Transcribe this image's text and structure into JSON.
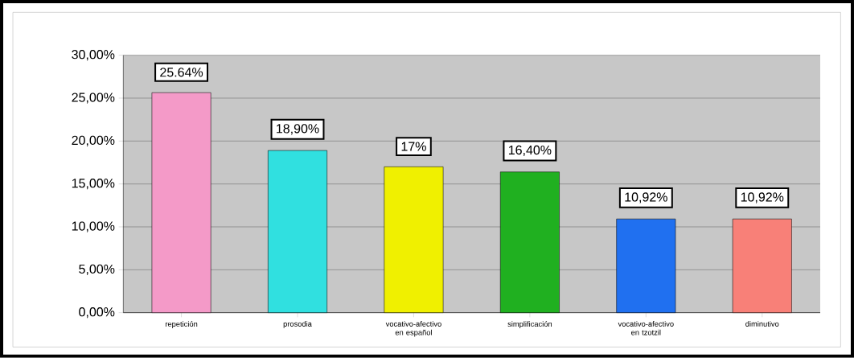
{
  "chart_data": {
    "type": "bar",
    "categories": [
      "repetición",
      "prosodia",
      "vocativo-afectivo en español",
      "simplificación",
      "vocativo-afectivo en tzotzil",
      "diminutivo"
    ],
    "values": [
      25.64,
      18.9,
      17,
      16.4,
      10.92,
      10.92
    ],
    "colors": [
      "#f49ac8",
      "#30e0e0",
      "#f0f000",
      "#20b020",
      "#2070f0",
      "#f88078"
    ],
    "value_labels": [
      "25.64%",
      "18,90%",
      "17%",
      "16,40%",
      "10,92%",
      "10,92%"
    ],
    "ylim": [
      0,
      30
    ],
    "yticks": [
      {
        "value": 0,
        "label": "0,00%"
      },
      {
        "value": 5,
        "label": "5,00%"
      },
      {
        "value": 10,
        "label": "10,00%"
      },
      {
        "value": 15,
        "label": "15,00%"
      },
      {
        "value": 20,
        "label": "20,00%"
      },
      {
        "value": 25,
        "label": "25,00%"
      },
      {
        "value": 30,
        "label": "30,00%"
      }
    ],
    "grid": "y"
  }
}
